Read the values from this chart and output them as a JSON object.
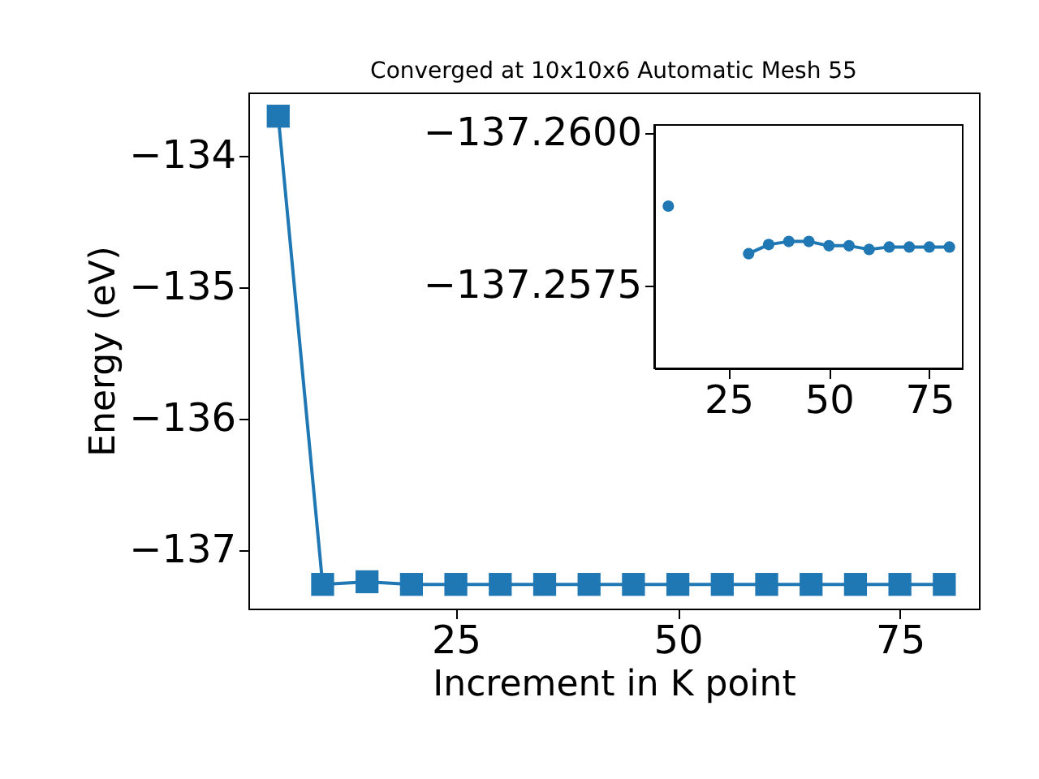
{
  "chart_data": [
    {
      "type": "line",
      "title": "Converged at 10x10x6 Automatic Mesh 55",
      "xlabel": "Increment in K point",
      "ylabel": "Energy (eV)",
      "marker": "square",
      "x": [
        5,
        10,
        15,
        20,
        25,
        30,
        35,
        40,
        45,
        50,
        55,
        60,
        65,
        70,
        75,
        80
      ],
      "series": [
        {
          "color": "#1f77b4",
          "values": [
            -133.7,
            -137.26,
            -137.24,
            -137.26,
            -137.26,
            -137.26,
            -137.26,
            -137.26,
            -137.26,
            -137.26,
            -137.26,
            -137.26,
            -137.26,
            -137.26,
            -137.26,
            -137.26
          ]
        }
      ],
      "xlim": [
        1.64,
        83.9
      ],
      "ylim": [
        -137.444,
        -133.52
      ],
      "xticks": [
        25,
        50,
        75
      ],
      "yticks": [
        {
          "value": -137,
          "label": "−137"
        },
        {
          "value": -136,
          "label": "−136"
        },
        {
          "value": -135,
          "label": "−135"
        },
        {
          "value": -134,
          "label": "−134"
        }
      ]
    },
    {
      "type": "line",
      "marker": "circle",
      "x": [
        10,
        15,
        20,
        25,
        30,
        35,
        40,
        45,
        50,
        55,
        60,
        65,
        70,
        75,
        80
      ],
      "series": [
        {
          "color": "#1f77b4",
          "values": [
            -137.2588,
            null,
            null,
            null,
            -137.25802,
            -137.25817,
            -137.25822,
            -137.25822,
            -137.25815,
            -137.25815,
            -137.25809,
            -137.25813,
            -137.25813,
            -137.25813,
            -137.25813
          ]
        }
      ],
      "xlim": [
        6.5,
        83.3
      ],
      "ylim": [
        -137.25614,
        -137.26013
      ],
      "xticks": [
        25,
        50,
        75
      ],
      "yticks": [
        {
          "value": -137.26,
          "label": "−137.2600"
        },
        {
          "value": -137.2575,
          "label": "−137.2575"
        }
      ]
    }
  ]
}
